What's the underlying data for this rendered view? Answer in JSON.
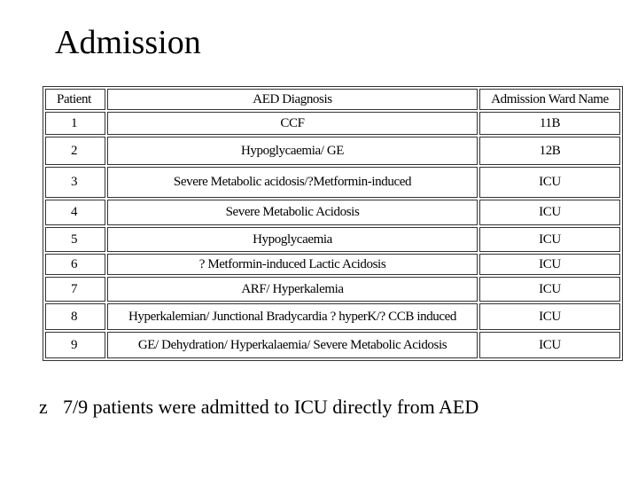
{
  "title": "Admission",
  "table": {
    "header": [
      "Patient",
      "AED Diagnosis",
      "Admission Ward Name"
    ],
    "rows": [
      [
        "1",
        "CCF",
        "11B"
      ],
      [
        "2",
        "Hypoglycaemia/ GE",
        "12B"
      ],
      [
        "3",
        "Severe Metabolic acidosis/?Metformin-induced",
        "ICU"
      ],
      [
        "4",
        "Severe Metabolic Acidosis",
        "ICU"
      ],
      [
        "5",
        "Hypoglycaemia",
        "ICU"
      ],
      [
        "6",
        "? Metformin-induced Lactic Acidosis",
        "ICU"
      ],
      [
        "7",
        "ARF/ Hyperkalemia",
        "ICU"
      ],
      [
        "8",
        "Hyperkalemian/ Junctional Bradycardia ? hyperK/? CCB induced",
        "ICU"
      ],
      [
        "9",
        "GE/ Dehydration/ Hyperkalaemia/ Severe Metabolic Acidosis",
        "ICU"
      ]
    ]
  },
  "bullet": {
    "marker": "z",
    "text": "7/9 patients were admitted to ICU directly from AED"
  }
}
